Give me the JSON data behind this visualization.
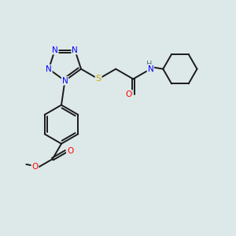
{
  "background_color": "#dde8e8",
  "figsize": [
    3.0,
    3.0
  ],
  "dpi": 100,
  "bond_color": "#1a1a1a",
  "N_color": "#0000ff",
  "O_color": "#ff0000",
  "S_color": "#ccaa00",
  "H_color": "#507878",
  "lw": 1.4,
  "label_fontsize": 7.5,
  "xlim": [
    0.0,
    10.0
  ],
  "ylim": [
    0.0,
    10.0
  ]
}
